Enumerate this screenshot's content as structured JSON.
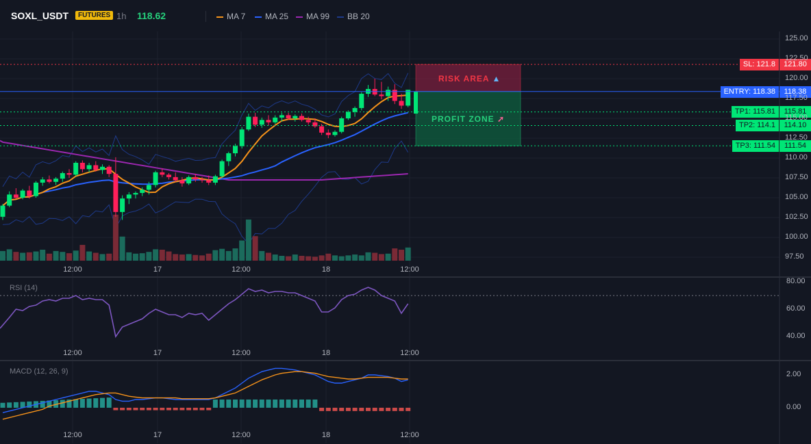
{
  "header": {
    "symbol": "SOXL_USDT",
    "badge": "FUTURES",
    "timeframe": "1h",
    "last_price": "118.62",
    "indicators": [
      {
        "label": "MA 7",
        "color": "#f7931a"
      },
      {
        "label": "MA 25",
        "color": "#2962ff"
      },
      {
        "label": "MA 99",
        "color": "#9c27b0"
      },
      {
        "label": "BB 20",
        "color": "#1e3a8a"
      }
    ]
  },
  "levels": {
    "sl": {
      "label": "SL: 121.8",
      "axis": "121.80",
      "value": 121.8,
      "color": "#f23645"
    },
    "entry": {
      "label": "ENTRY: 118.38",
      "axis": "118.38",
      "value": 118.38,
      "color": "#2962ff"
    },
    "tp1": {
      "label": "TP1: 115.81",
      "axis": "115.81",
      "value": 115.81,
      "color": "#00e676"
    },
    "tp2": {
      "label": "TP2: 114.1",
      "axis": "114.10",
      "value": 114.1,
      "color": "#00e676"
    },
    "tp3": {
      "label": "TP3: 111.54",
      "axis": "111.54",
      "value": 111.54,
      "color": "#00e676"
    }
  },
  "zones": {
    "risk_label": "RISK AREA",
    "profit_label": "PROFIT ZONE"
  },
  "price_axis": [
    "125.00",
    "122.50",
    "120.00",
    "117.50",
    "115.00",
    "112.50",
    "110.00",
    "107.50",
    "105.00",
    "102.50",
    "100.00",
    "97.50"
  ],
  "time_axis": [
    "12:00",
    "17",
    "12:00",
    "18",
    "12:00"
  ],
  "rsi": {
    "title": "RSI (14)",
    "axis": [
      "80.00",
      "60.00",
      "40.00"
    ]
  },
  "macd": {
    "title": "MACD (12, 26, 9)",
    "axis": [
      "2.00",
      "0.00"
    ]
  },
  "chart_data": {
    "type": "line",
    "ohlc": [
      [
        102.6,
        104.2,
        102.2,
        104.0
      ],
      [
        104.0,
        105.8,
        103.8,
        105.4
      ],
      [
        105.4,
        106.2,
        104.9,
        105.0
      ],
      [
        105.0,
        106.1,
        104.8,
        105.9
      ],
      [
        105.9,
        106.5,
        104.9,
        105.2
      ],
      [
        105.2,
        107.1,
        105.0,
        106.9
      ],
      [
        106.9,
        107.6,
        106.5,
        107.3
      ],
      [
        107.3,
        107.8,
        106.8,
        107.0
      ],
      [
        107.0,
        107.6,
        106.6,
        107.4
      ],
      [
        107.4,
        108.3,
        107.0,
        108.1
      ],
      [
        108.1,
        108.6,
        107.5,
        107.9
      ],
      [
        107.9,
        109.6,
        107.7,
        109.4
      ],
      [
        109.4,
        109.7,
        108.2,
        108.6
      ],
      [
        108.6,
        109.4,
        108.2,
        109.1
      ],
      [
        109.1,
        109.6,
        108.3,
        108.5
      ],
      [
        108.5,
        109.2,
        108.0,
        108.9
      ],
      [
        108.9,
        109.1,
        107.6,
        108.0
      ],
      [
        108.0,
        110.1,
        102.6,
        103.2
      ],
      [
        103.2,
        105.3,
        102.2,
        104.9
      ],
      [
        104.9,
        105.7,
        104.2,
        105.4
      ],
      [
        105.4,
        105.8,
        104.9,
        105.6
      ],
      [
        105.6,
        106.3,
        105.2,
        106.0
      ],
      [
        106.0,
        107.0,
        105.4,
        106.6
      ],
      [
        106.6,
        108.4,
        106.3,
        108.2
      ],
      [
        108.2,
        108.7,
        107.6,
        107.9
      ],
      [
        107.9,
        108.1,
        107.3,
        107.6
      ],
      [
        107.6,
        108.2,
        107.0,
        107.2
      ],
      [
        107.2,
        107.6,
        106.4,
        106.8
      ],
      [
        106.8,
        107.8,
        106.6,
        107.6
      ],
      [
        107.6,
        108.0,
        107.0,
        107.3
      ],
      [
        107.3,
        107.6,
        106.9,
        107.2
      ],
      [
        107.2,
        107.8,
        106.6,
        106.9
      ],
      [
        106.9,
        107.9,
        106.6,
        107.7
      ],
      [
        107.7,
        109.8,
        107.5,
        109.6
      ],
      [
        109.6,
        110.8,
        109.0,
        110.6
      ],
      [
        110.6,
        111.8,
        110.2,
        111.5
      ],
      [
        111.5,
        113.9,
        111.2,
        113.6
      ],
      [
        113.6,
        115.6,
        113.4,
        115.2
      ],
      [
        115.2,
        115.7,
        113.9,
        114.2
      ],
      [
        114.2,
        115.1,
        113.8,
        114.8
      ],
      [
        114.8,
        115.4,
        114.1,
        114.5
      ],
      [
        114.5,
        115.4,
        114.3,
        115.1
      ],
      [
        115.1,
        115.7,
        114.6,
        115.4
      ],
      [
        115.4,
        115.7,
        114.8,
        115.0
      ],
      [
        115.0,
        115.5,
        114.6,
        115.3
      ],
      [
        115.3,
        115.6,
        114.6,
        114.8
      ],
      [
        114.8,
        115.2,
        114.2,
        114.5
      ],
      [
        114.5,
        115.0,
        113.8,
        114.0
      ],
      [
        114.0,
        114.3,
        112.9,
        113.2
      ],
      [
        113.2,
        113.6,
        112.5,
        112.9
      ],
      [
        112.9,
        113.5,
        112.7,
        113.3
      ],
      [
        113.3,
        115.2,
        113.1,
        115.0
      ],
      [
        115.0,
        116.0,
        114.8,
        115.8
      ],
      [
        115.8,
        116.5,
        115.2,
        116.3
      ],
      [
        116.3,
        118.3,
        116.0,
        118.1
      ],
      [
        118.1,
        119.2,
        117.7,
        118.7
      ],
      [
        118.7,
        120.0,
        117.8,
        118.0
      ],
      [
        118.0,
        119.6,
        117.4,
        117.8
      ],
      [
        117.8,
        119.0,
        117.2,
        118.6
      ],
      [
        118.6,
        119.3,
        116.8,
        117.2
      ],
      [
        117.2,
        118.1,
        116.2,
        116.6
      ],
      [
        116.6,
        118.6,
        116.4,
        118.6
      ]
    ],
    "volume": [
      2.2,
      2.6,
      2.0,
      1.8,
      1.9,
      2.1,
      2.5,
      1.6,
      2.2,
      2.0,
      1.7,
      2.3,
      3.6,
      2.1,
      1.8,
      1.5,
      1.6,
      10.5,
      5.5,
      1.9,
      1.6,
      1.7,
      2.0,
      2.6,
      2.5,
      2.1,
      1.5,
      1.4,
      1.5,
      1.3,
      1.2,
      1.6,
      2.4,
      2.7,
      2.2,
      2.8,
      4.6,
      9.4,
      5.6,
      2.2,
      1.8,
      1.4,
      1.1,
      1.0,
      1.4,
      1.1,
      1.0,
      0.9,
      1.2,
      1.6,
      1.2,
      1.0,
      1.2,
      1.4,
      1.2,
      1.9,
      1.8,
      1.5,
      1.6,
      2.8,
      2.5,
      3.0
    ],
    "rsi": [
      46,
      54,
      60,
      59,
      62,
      63,
      66,
      67,
      66,
      68,
      68,
      70,
      67,
      68,
      67,
      67,
      63,
      40,
      47,
      49,
      51,
      53,
      57,
      60,
      58,
      56,
      56,
      54,
      57,
      56,
      57,
      52,
      56,
      60,
      64,
      67,
      71,
      75,
      73,
      74,
      72,
      73,
      73,
      72,
      72,
      70,
      68,
      66,
      58,
      58,
      61,
      67,
      70,
      71,
      74,
      76,
      74,
      70,
      68,
      66,
      57,
      64
    ],
    "macd": [
      -0.3,
      -0.2,
      -0.1,
      0.0,
      0.1,
      0.2,
      0.3,
      0.4,
      0.5,
      0.6,
      0.7,
      0.8,
      0.9,
      1.0,
      1.0,
      0.9,
      0.8,
      0.5,
      0.4,
      0.4,
      0.5,
      0.5,
      0.55,
      0.6,
      0.6,
      0.55,
      0.5,
      0.5,
      0.5,
      0.5,
      0.5,
      0.5,
      0.6,
      0.8,
      1.0,
      1.2,
      1.5,
      1.8,
      2.0,
      2.2,
      2.3,
      2.4,
      2.4,
      2.35,
      2.3,
      2.2,
      2.1,
      2.0,
      1.8,
      1.6,
      1.5,
      1.5,
      1.6,
      1.7,
      1.8,
      2.0,
      2.0,
      1.95,
      1.9,
      1.8,
      1.6,
      1.7
    ],
    "signal": [
      -0.7,
      -0.6,
      -0.5,
      -0.4,
      -0.3,
      -0.2,
      -0.1,
      0.1,
      0.2,
      0.3,
      0.4,
      0.5,
      0.6,
      0.7,
      0.8,
      0.85,
      0.9,
      0.9,
      0.8,
      0.7,
      0.65,
      0.6,
      0.6,
      0.6,
      0.6,
      0.6,
      0.6,
      0.55,
      0.55,
      0.55,
      0.55,
      0.55,
      0.6,
      0.7,
      0.8,
      0.9,
      1.1,
      1.3,
      1.5,
      1.7,
      1.85,
      2.0,
      2.1,
      2.15,
      2.2,
      2.2,
      2.15,
      2.1,
      2.0,
      1.9,
      1.85,
      1.8,
      1.75,
      1.75,
      1.8,
      1.85,
      1.85,
      1.85,
      1.85,
      1.8,
      1.75,
      1.75
    ]
  }
}
